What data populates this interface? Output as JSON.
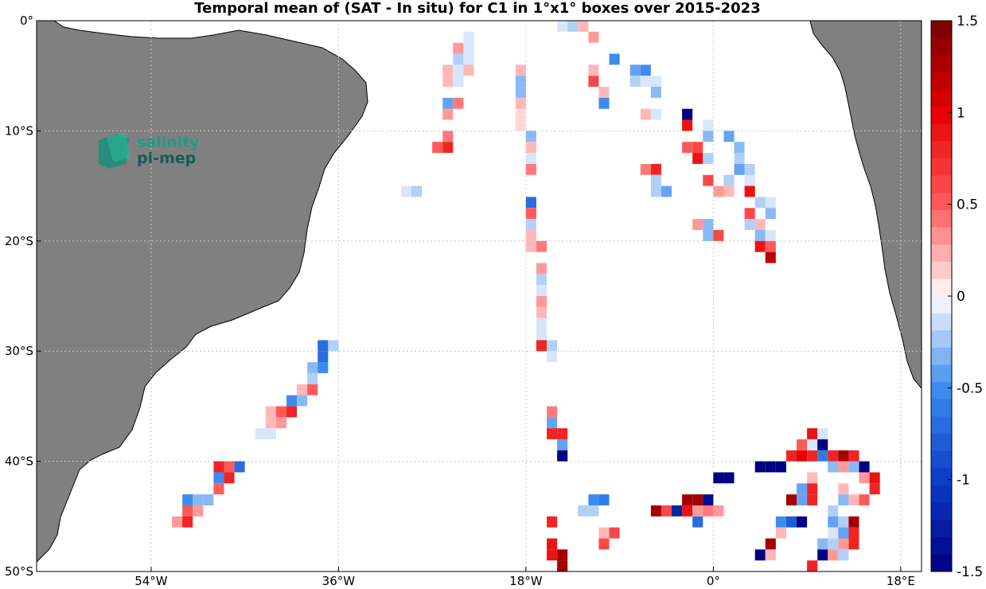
{
  "chart_data": {
    "type": "heatmap",
    "title": "Temporal mean of (SAT - In situ) for C1 in 1°x1° boxes over 2015-2023",
    "xlabel": "",
    "ylabel": "",
    "xlim": [
      -65,
      20
    ],
    "ylim": [
      -50,
      0
    ],
    "x_ticks": [
      {
        "value": -54,
        "label": "54°W"
      },
      {
        "value": -36,
        "label": "36°W"
      },
      {
        "value": -18,
        "label": "18°W"
      },
      {
        "value": 0,
        "label": "0°"
      },
      {
        "value": 18,
        "label": "18°E"
      }
    ],
    "y_ticks": [
      {
        "value": 0,
        "label": "0°"
      },
      {
        "value": -10,
        "label": "10°S"
      },
      {
        "value": -20,
        "label": "20°S"
      },
      {
        "value": -30,
        "label": "30°S"
      },
      {
        "value": -40,
        "label": "40°S"
      },
      {
        "value": -50,
        "label": "50°S"
      }
    ],
    "grid": true,
    "colorbar": {
      "range": [
        -1.5,
        1.5
      ],
      "levels": 32,
      "placement": "right",
      "tick_values": [
        1.5,
        1,
        0.5,
        0,
        -0.5,
        -1,
        -1.5
      ],
      "tick_labels": [
        "1.5",
        "1",
        "0.5",
        "0",
        "-0.5",
        "-1",
        "-1.5"
      ]
    },
    "land_color": "#808080",
    "cells": [
      {
        "lon": -24,
        "lat": -1,
        "v": -0.1
      },
      {
        "lon": -25,
        "lat": -2,
        "v": 0.3
      },
      {
        "lon": -24,
        "lat": -2,
        "v": -0.1
      },
      {
        "lon": -25,
        "lat": -3,
        "v": -0.2
      },
      {
        "lon": -24,
        "lat": -3,
        "v": -0.1
      },
      {
        "lon": -26,
        "lat": -4,
        "v": 0.2
      },
      {
        "lon": -25,
        "lat": -4,
        "v": -0.1
      },
      {
        "lon": -24,
        "lat": -4,
        "v": 0.2
      },
      {
        "lon": -26,
        "lat": -5,
        "v": 0.2
      },
      {
        "lon": -25,
        "lat": -5,
        "v": -0.1
      },
      {
        "lon": -26,
        "lat": -7,
        "v": -0.4
      },
      {
        "lon": -25,
        "lat": -7,
        "v": 0.4
      },
      {
        "lon": -26,
        "lat": -8,
        "v": 0.3
      },
      {
        "lon": -26,
        "lat": -10,
        "v": 0.4
      },
      {
        "lon": -27,
        "lat": -11,
        "v": 0.5
      },
      {
        "lon": -26,
        "lat": -11,
        "v": 0.8
      },
      {
        "lon": -19,
        "lat": -4,
        "v": 0.2
      },
      {
        "lon": -19,
        "lat": -5,
        "v": -0.3
      },
      {
        "lon": -19,
        "lat": -6,
        "v": -0.3
      },
      {
        "lon": -19,
        "lat": -7,
        "v": 0.2
      },
      {
        "lon": -19,
        "lat": -8,
        "v": 0.1
      },
      {
        "lon": -19,
        "lat": -9,
        "v": 0.1
      },
      {
        "lon": -18,
        "lat": -10,
        "v": -0.3
      },
      {
        "lon": -18,
        "lat": -11,
        "v": 0.2
      },
      {
        "lon": -18,
        "lat": -12,
        "v": -0.1
      },
      {
        "lon": -18,
        "lat": -13,
        "v": 0.4
      },
      {
        "lon": -30,
        "lat": -15,
        "v": -0.1
      },
      {
        "lon": -29,
        "lat": -15,
        "v": -0.2
      },
      {
        "lon": -18,
        "lat": -16,
        "v": -0.7
      },
      {
        "lon": -18,
        "lat": -17,
        "v": 0.5
      },
      {
        "lon": -18,
        "lat": -18,
        "v": -0.2
      },
      {
        "lon": -18,
        "lat": -19,
        "v": 0.2
      },
      {
        "lon": -18,
        "lat": -20,
        "v": 0.2
      },
      {
        "lon": -17,
        "lat": -20,
        "v": 0.4
      },
      {
        "lon": -17,
        "lat": -22,
        "v": 0.3
      },
      {
        "lon": -17,
        "lat": -23,
        "v": -0.2
      },
      {
        "lon": -17,
        "lat": -24,
        "v": -0.1
      },
      {
        "lon": -17,
        "lat": -25,
        "v": 0.3
      },
      {
        "lon": -17,
        "lat": -26,
        "v": 0.2
      },
      {
        "lon": -17,
        "lat": -27,
        "v": -0.1
      },
      {
        "lon": -17,
        "lat": -28,
        "v": -0.1
      },
      {
        "lon": -17,
        "lat": -29,
        "v": 0.8
      },
      {
        "lon": -16,
        "lat": -29,
        "v": -0.2
      },
      {
        "lon": -16,
        "lat": -30,
        "v": -0.1
      },
      {
        "lon": -16,
        "lat": -35,
        "v": 0.4
      },
      {
        "lon": -16,
        "lat": -36,
        "v": -0.4
      },
      {
        "lon": -16,
        "lat": -37,
        "v": 0.8
      },
      {
        "lon": -15,
        "lat": -37,
        "v": 0.8
      },
      {
        "lon": -15,
        "lat": -38,
        "v": -0.4
      },
      {
        "lon": -15,
        "lat": -39,
        "v": -1.5
      },
      {
        "lon": -15,
        "lat": 0,
        "v": -0.1
      },
      {
        "lon": -14,
        "lat": 0,
        "v": -0.2
      },
      {
        "lon": -13,
        "lat": 0,
        "v": 0.2
      },
      {
        "lon": -12,
        "lat": -1,
        "v": 0.3
      },
      {
        "lon": -10,
        "lat": -3,
        "v": -0.5
      },
      {
        "lon": -12,
        "lat": -4,
        "v": 0.2
      },
      {
        "lon": -12,
        "lat": -5,
        "v": 0.6
      },
      {
        "lon": -11,
        "lat": -6,
        "v": 0.2
      },
      {
        "lon": -11,
        "lat": -7,
        "v": -0.5
      },
      {
        "lon": -8,
        "lat": -4,
        "v": -0.4
      },
      {
        "lon": -7,
        "lat": -4,
        "v": -0.5
      },
      {
        "lon": -8,
        "lat": -5,
        "v": -0.2
      },
      {
        "lon": -7,
        "lat": -5,
        "v": -0.1
      },
      {
        "lon": -6,
        "lat": -5,
        "v": -0.1
      },
      {
        "lon": -6,
        "lat": -6,
        "v": -0.3
      },
      {
        "lon": -7,
        "lat": -8,
        "v": 0.2
      },
      {
        "lon": -6,
        "lat": -8,
        "v": -0.1
      },
      {
        "lon": -3,
        "lat": -8,
        "v": -1.5
      },
      {
        "lon": -3,
        "lat": -9,
        "v": 0.9
      },
      {
        "lon": -1,
        "lat": -9,
        "v": -0.1
      },
      {
        "lon": -1,
        "lat": -10,
        "v": -0.3
      },
      {
        "lon": 1,
        "lat": -10,
        "v": -0.4
      },
      {
        "lon": -3,
        "lat": -11,
        "v": 0.5
      },
      {
        "lon": -2,
        "lat": -11,
        "v": 0.6
      },
      {
        "lon": -2,
        "lat": -12,
        "v": 0.9
      },
      {
        "lon": -1,
        "lat": -12,
        "v": -0.2
      },
      {
        "lon": 2,
        "lat": -11,
        "v": -0.3
      },
      {
        "lon": 2,
        "lat": -12,
        "v": -0.2
      },
      {
        "lon": 2,
        "lat": -13,
        "v": -0.4
      },
      {
        "lon": 3,
        "lat": -13,
        "v": -0.2
      },
      {
        "lon": -7,
        "lat": -13,
        "v": 0.4
      },
      {
        "lon": -6,
        "lat": -13,
        "v": 0.8
      },
      {
        "lon": -6,
        "lat": -14,
        "v": -0.2
      },
      {
        "lon": -6,
        "lat": -15,
        "v": -0.2
      },
      {
        "lon": -5,
        "lat": -15,
        "v": -0.4
      },
      {
        "lon": -1,
        "lat": -14,
        "v": 0.6
      },
      {
        "lon": 0,
        "lat": -15,
        "v": 0.3
      },
      {
        "lon": 1,
        "lat": -14,
        "v": -0.2
      },
      {
        "lon": 1,
        "lat": -15,
        "v": 0.2
      },
      {
        "lon": 3,
        "lat": -14,
        "v": -0.1
      },
      {
        "lon": 3,
        "lat": -15,
        "v": 0.9
      },
      {
        "lon": 4,
        "lat": -16,
        "v": -0.2
      },
      {
        "lon": 5,
        "lat": -16,
        "v": -0.1
      },
      {
        "lon": 3,
        "lat": -17,
        "v": 0.6
      },
      {
        "lon": 5,
        "lat": -17,
        "v": -0.3
      },
      {
        "lon": 3,
        "lat": -18,
        "v": -0.2
      },
      {
        "lon": 4,
        "lat": -18,
        "v": 0.2
      },
      {
        "lon": -2,
        "lat": -18,
        "v": 0.3
      },
      {
        "lon": -1,
        "lat": -18,
        "v": -0.3
      },
      {
        "lon": -1,
        "lat": -19,
        "v": -0.3
      },
      {
        "lon": 0,
        "lat": -19,
        "v": 0.6
      },
      {
        "lon": 4,
        "lat": -19,
        "v": -0.3
      },
      {
        "lon": 5,
        "lat": -19,
        "v": -0.1
      },
      {
        "lon": 4,
        "lat": -20,
        "v": 0.9
      },
      {
        "lon": 5,
        "lat": -20,
        "v": 0.5
      },
      {
        "lon": 5,
        "lat": -21,
        "v": 1.2
      },
      {
        "lon": -38,
        "lat": -29,
        "v": -0.7
      },
      {
        "lon": -37,
        "lat": -29,
        "v": -0.2
      },
      {
        "lon": -38,
        "lat": -30,
        "v": -0.7
      },
      {
        "lon": -39,
        "lat": -31,
        "v": -0.3
      },
      {
        "lon": -38,
        "lat": -31,
        "v": -0.5
      },
      {
        "lon": -39,
        "lat": -32,
        "v": -0.2
      },
      {
        "lon": -40,
        "lat": -33,
        "v": 0.2
      },
      {
        "lon": -39,
        "lat": -33,
        "v": 0.5
      },
      {
        "lon": -41,
        "lat": -34,
        "v": -0.5
      },
      {
        "lon": -40,
        "lat": -34,
        "v": -0.3
      },
      {
        "lon": -43,
        "lat": -35,
        "v": 0.2
      },
      {
        "lon": -42,
        "lat": -35,
        "v": 0.5
      },
      {
        "lon": -41,
        "lat": -35,
        "v": 0.8
      },
      {
        "lon": -43,
        "lat": -36,
        "v": 0.2
      },
      {
        "lon": -42,
        "lat": -36,
        "v": 0.3
      },
      {
        "lon": -44,
        "lat": -37,
        "v": -0.1
      },
      {
        "lon": -43,
        "lat": -37,
        "v": -0.1
      },
      {
        "lon": -48,
        "lat": -40,
        "v": 0.8
      },
      {
        "lon": -47,
        "lat": -40,
        "v": 0.5
      },
      {
        "lon": -46,
        "lat": -40,
        "v": -0.7
      },
      {
        "lon": -48,
        "lat": -41,
        "v": -0.5
      },
      {
        "lon": -47,
        "lat": -41,
        "v": 0.8
      },
      {
        "lon": -48,
        "lat": -42,
        "v": 0.5
      },
      {
        "lon": -51,
        "lat": -43,
        "v": -0.5
      },
      {
        "lon": -50,
        "lat": -43,
        "v": -0.3
      },
      {
        "lon": -49,
        "lat": -43,
        "v": -0.3
      },
      {
        "lon": -51,
        "lat": -44,
        "v": 0.5
      },
      {
        "lon": -50,
        "lat": -44,
        "v": 0.3
      },
      {
        "lon": -52,
        "lat": -45,
        "v": 0.3
      },
      {
        "lon": -51,
        "lat": -45,
        "v": 0.8
      },
      {
        "lon": -12,
        "lat": -43,
        "v": -0.5
      },
      {
        "lon": -11,
        "lat": -43,
        "v": -0.6
      },
      {
        "lon": -13,
        "lat": -44,
        "v": -0.2
      },
      {
        "lon": -12,
        "lat": -44,
        "v": -0.2
      },
      {
        "lon": -16,
        "lat": -45,
        "v": 0.8
      },
      {
        "lon": -11,
        "lat": -46,
        "v": 0.2
      },
      {
        "lon": -10,
        "lat": -46,
        "v": 0.6
      },
      {
        "lon": -11,
        "lat": -47,
        "v": 0.6
      },
      {
        "lon": -16,
        "lat": -47,
        "v": 0.9
      },
      {
        "lon": -16,
        "lat": -48,
        "v": 0.9
      },
      {
        "lon": -15,
        "lat": -48,
        "v": 1.3
      },
      {
        "lon": -15,
        "lat": -49,
        "v": 1.3
      },
      {
        "lon": -6,
        "lat": -44,
        "v": 1.3
      },
      {
        "lon": -5,
        "lat": -44,
        "v": 0.6
      },
      {
        "lon": -4,
        "lat": -44,
        "v": -1.2
      },
      {
        "lon": -3,
        "lat": -43,
        "v": 1.3
      },
      {
        "lon": -2,
        "lat": -43,
        "v": 1.3
      },
      {
        "lon": -3,
        "lat": -44,
        "v": 0.9
      },
      {
        "lon": -2,
        "lat": -44,
        "v": 0.3
      },
      {
        "lon": -1,
        "lat": -43,
        "v": -1.4
      },
      {
        "lon": -1,
        "lat": -44,
        "v": 0.4
      },
      {
        "lon": 0,
        "lat": -44,
        "v": 0.3
      },
      {
        "lon": -2,
        "lat": -45,
        "v": -0.7
      },
      {
        "lon": 0,
        "lat": -41,
        "v": -1.5
      },
      {
        "lon": 1,
        "lat": -41,
        "v": -1.5
      },
      {
        "lon": 4,
        "lat": -40,
        "v": -1.5
      },
      {
        "lon": 5,
        "lat": -40,
        "v": -1.5
      },
      {
        "lon": 6,
        "lat": -40,
        "v": -1.5
      },
      {
        "lon": 7,
        "lat": -39,
        "v": 0.8
      },
      {
        "lon": 8,
        "lat": -39,
        "v": 1.0
      },
      {
        "lon": 9,
        "lat": -39,
        "v": 0.8
      },
      {
        "lon": 8,
        "lat": -38,
        "v": 0.5
      },
      {
        "lon": 9,
        "lat": -37,
        "v": 0.9
      },
      {
        "lon": 10,
        "lat": -37,
        "v": -0.1
      },
      {
        "lon": 9,
        "lat": -38,
        "v": -0.1
      },
      {
        "lon": 10,
        "lat": -38,
        "v": -1.5
      },
      {
        "lon": 10,
        "lat": -39,
        "v": -0.6
      },
      {
        "lon": 11,
        "lat": -39,
        "v": 0.8
      },
      {
        "lon": 12,
        "lat": -39,
        "v": 1.3
      },
      {
        "lon": 11,
        "lat": -40,
        "v": -0.3
      },
      {
        "lon": 12,
        "lat": -40,
        "v": 0.3
      },
      {
        "lon": 13,
        "lat": -40,
        "v": -0.3
      },
      {
        "lon": 14,
        "lat": -40,
        "v": -1.5
      },
      {
        "lon": 13,
        "lat": -39,
        "v": 0.8
      },
      {
        "lon": 15,
        "lat": -41,
        "v": 0.9
      },
      {
        "lon": 14,
        "lat": -41,
        "v": 0.3
      },
      {
        "lon": 9,
        "lat": -41,
        "v": 0.2
      },
      {
        "lon": 9,
        "lat": -42,
        "v": 0.8
      },
      {
        "lon": 8,
        "lat": -42,
        "v": -0.4
      },
      {
        "lon": 12,
        "lat": -42,
        "v": 0.2
      },
      {
        "lon": 15,
        "lat": -42,
        "v": 0.8
      },
      {
        "lon": 7,
        "lat": -43,
        "v": 1.3
      },
      {
        "lon": 8,
        "lat": -43,
        "v": -0.4
      },
      {
        "lon": 9,
        "lat": -43,
        "v": 0.8
      },
      {
        "lon": 12,
        "lat": -43,
        "v": -0.3
      },
      {
        "lon": 13,
        "lat": -43,
        "v": 0.2
      },
      {
        "lon": 14,
        "lat": -43,
        "v": 0.5
      },
      {
        "lon": 11,
        "lat": -44,
        "v": -0.2
      },
      {
        "lon": 6,
        "lat": -45,
        "v": -0.5
      },
      {
        "lon": 7,
        "lat": -45,
        "v": -0.8
      },
      {
        "lon": 8,
        "lat": -45,
        "v": -1.5
      },
      {
        "lon": 11,
        "lat": -45,
        "v": -0.4
      },
      {
        "lon": 12,
        "lat": -45,
        "v": -0.2
      },
      {
        "lon": 13,
        "lat": -45,
        "v": 1.3
      },
      {
        "lon": 6,
        "lat": -46,
        "v": 0.2
      },
      {
        "lon": 11,
        "lat": -46,
        "v": -0.1
      },
      {
        "lon": 12,
        "lat": -46,
        "v": -0.4
      },
      {
        "lon": 13,
        "lat": -46,
        "v": 0.8
      },
      {
        "lon": 5,
        "lat": -47,
        "v": 1.3
      },
      {
        "lon": 10,
        "lat": -47,
        "v": -0.3
      },
      {
        "lon": 11,
        "lat": -47,
        "v": -0.2
      },
      {
        "lon": 12,
        "lat": -47,
        "v": 0.3
      },
      {
        "lon": 13,
        "lat": -47,
        "v": 0.8
      },
      {
        "lon": 4,
        "lat": -48,
        "v": -1.5
      },
      {
        "lon": 5,
        "lat": -48,
        "v": 0.2
      },
      {
        "lon": 10,
        "lat": -48,
        "v": -1.5
      },
      {
        "lon": 11,
        "lat": -48,
        "v": 0.3
      },
      {
        "lon": 12,
        "lat": -48,
        "v": -0.2
      },
      {
        "lon": 9,
        "lat": -49,
        "v": 0.8
      }
    ]
  },
  "logo": {
    "line1": "salinity",
    "line2": "pi-mep"
  }
}
